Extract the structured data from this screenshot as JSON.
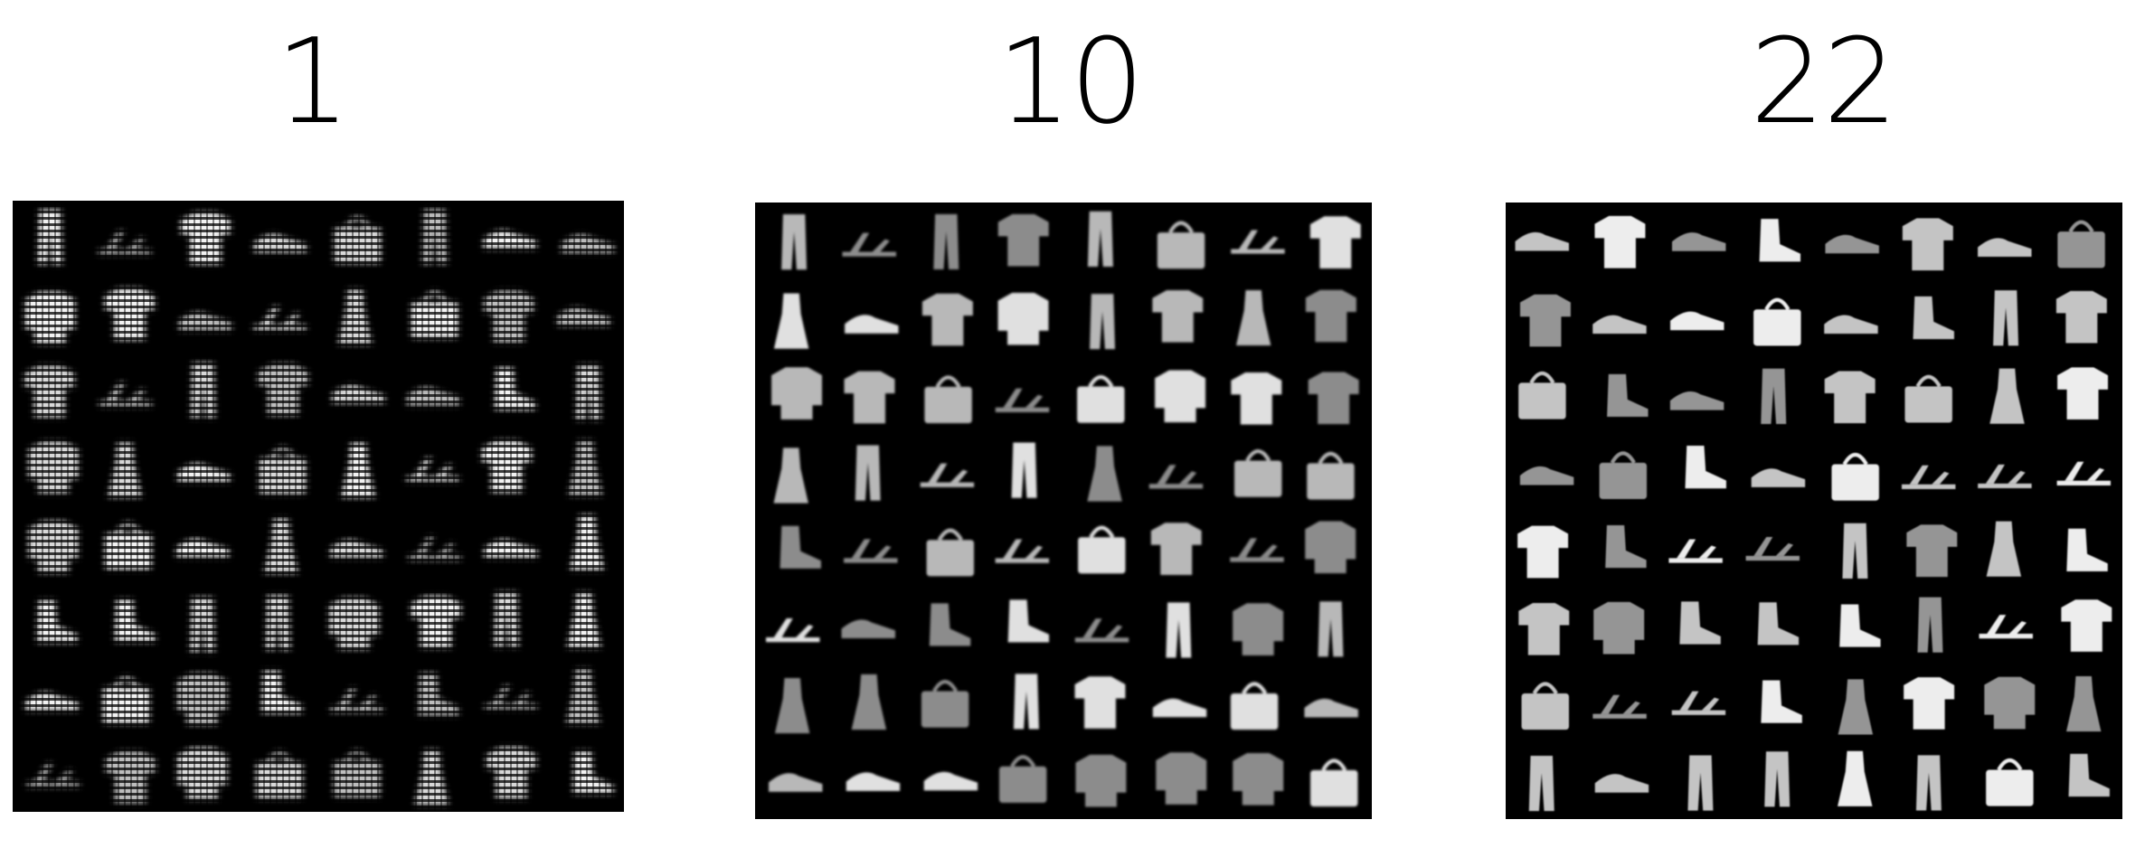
{
  "panels": [
    {
      "label": "1",
      "style": "noisy",
      "seed": 11
    },
    {
      "label": "10",
      "style": "medium",
      "seed": 23
    },
    {
      "label": "22",
      "style": "sharp",
      "seed": 37
    }
  ],
  "grid": {
    "rows": 8,
    "cols": 8
  },
  "colors": {
    "background": "#ffffff",
    "grid_background": "#000000",
    "item_tone_light": "#e6e6e6",
    "item_tone_mid": "#a8a8a8",
    "item_tone_dark": "#6e6e6e"
  }
}
